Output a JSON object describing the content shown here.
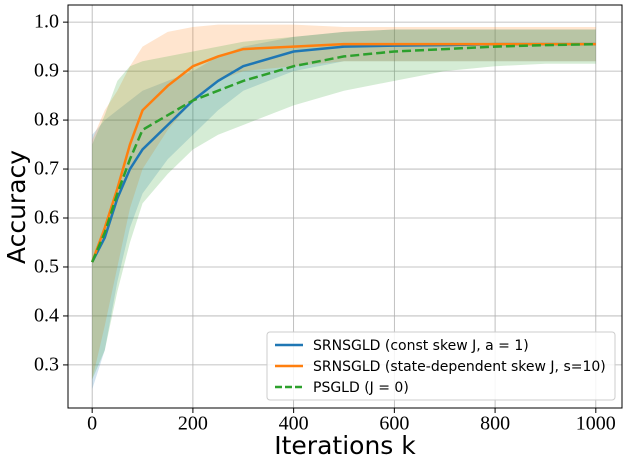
{
  "chart_data": {
    "type": "line",
    "x_label": "Iterations k",
    "y_label": "Accuracy",
    "x": [
      0,
      25,
      50,
      75,
      100,
      150,
      200,
      250,
      300,
      400,
      500,
      600,
      700,
      800,
      900,
      1000
    ],
    "series": [
      {
        "name": "SRNSGLD (const skew J, a = 1)",
        "color": "#1f77b4",
        "linestyle": "solid",
        "values": [
          0.51,
          0.56,
          0.64,
          0.7,
          0.74,
          0.79,
          0.84,
          0.88,
          0.91,
          0.94,
          0.95,
          0.952,
          0.953,
          0.955,
          0.955,
          0.955
        ],
        "lower": [
          0.25,
          0.33,
          0.47,
          0.58,
          0.65,
          0.72,
          0.77,
          0.82,
          0.86,
          0.9,
          0.92,
          0.92,
          0.92,
          0.92,
          0.92,
          0.92
        ],
        "upper": [
          0.77,
          0.8,
          0.82,
          0.84,
          0.86,
          0.88,
          0.9,
          0.93,
          0.95,
          0.97,
          0.98,
          0.985,
          0.985,
          0.985,
          0.985,
          0.985
        ]
      },
      {
        "name": "SRNSGLD (state-dependent skew J, s=10)",
        "color": "#ff7f0e",
        "linestyle": "solid",
        "values": [
          0.51,
          0.58,
          0.66,
          0.75,
          0.82,
          0.87,
          0.91,
          0.93,
          0.945,
          0.95,
          0.955,
          0.955,
          0.955,
          0.955,
          0.955,
          0.955
        ],
        "lower": [
          0.27,
          0.38,
          0.5,
          0.62,
          0.7,
          0.78,
          0.84,
          0.88,
          0.9,
          0.91,
          0.92,
          0.92,
          0.92,
          0.92,
          0.92,
          0.92
        ],
        "upper": [
          0.76,
          0.82,
          0.86,
          0.91,
          0.95,
          0.98,
          0.99,
          0.995,
          0.995,
          0.995,
          0.99,
          0.99,
          0.99,
          0.99,
          0.99,
          0.99
        ]
      },
      {
        "name": "PSGLD (J = 0)",
        "color": "#2ca02c",
        "linestyle": "dashed",
        "values": [
          0.51,
          0.57,
          0.65,
          0.72,
          0.78,
          0.81,
          0.84,
          0.86,
          0.88,
          0.91,
          0.93,
          0.94,
          0.945,
          0.95,
          0.953,
          0.955
        ],
        "lower": [
          0.27,
          0.33,
          0.45,
          0.55,
          0.63,
          0.69,
          0.74,
          0.77,
          0.79,
          0.83,
          0.86,
          0.88,
          0.9,
          0.91,
          0.915,
          0.915
        ],
        "upper": [
          0.75,
          0.81,
          0.88,
          0.91,
          0.92,
          0.93,
          0.94,
          0.95,
          0.96,
          0.97,
          0.98,
          0.985,
          0.985,
          0.985,
          0.985,
          0.985
        ]
      }
    ],
    "xlim": [
      -48,
      1052
    ],
    "ylim": [
      0.212,
      1.035
    ],
    "xticks": [
      0,
      200,
      400,
      600,
      800,
      1000
    ],
    "yticks": [
      0.3,
      0.4,
      0.5,
      0.6,
      0.7,
      0.8,
      0.9,
      {
        "value": 1,
        "label": "1.0"
      }
    ],
    "grid": true,
    "legend": "lower right"
  }
}
